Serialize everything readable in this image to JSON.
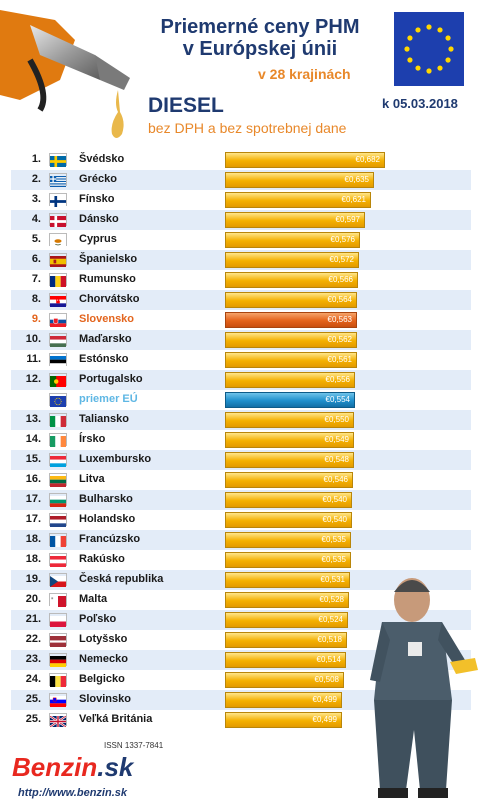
{
  "header": {
    "title_line1": "Priemerné ceny PHM",
    "title_line2": "v Európskej únii",
    "subtitle": "v 28 krajinách",
    "date": "k 05.03.2018",
    "fuel": "DIESEL",
    "note": "bez DPH a bez spotrebnej dane"
  },
  "footer": {
    "issn": "ISSN 1337-7841",
    "logo_main": "Benzin",
    "logo_tld": ".sk",
    "url": "http://www.benzin.sk"
  },
  "colors": {
    "bar": "#f4b000",
    "highlight_slovakia": "#e4621a",
    "highlight_eu": "#1f8fcc"
  },
  "chart_data": {
    "type": "bar",
    "title": "Priemerné ceny PHM v Európskej únii",
    "subtitle": "v 28 krajinách",
    "unit": "€",
    "orientation": "horizontal",
    "rows": [
      {
        "rank": "1.",
        "country": "Švédsko",
        "value": 0.682,
        "label": "€0,682",
        "flag": "se"
      },
      {
        "rank": "2.",
        "country": "Grécko",
        "value": 0.635,
        "label": "€0,635",
        "flag": "gr"
      },
      {
        "rank": "3.",
        "country": "Fínsko",
        "value": 0.621,
        "label": "€0,621",
        "flag": "fi"
      },
      {
        "rank": "4.",
        "country": "Dánsko",
        "value": 0.597,
        "label": "€0,597",
        "flag": "dk"
      },
      {
        "rank": "5.",
        "country": "Cyprus",
        "value": 0.576,
        "label": "€0,576",
        "flag": "cy"
      },
      {
        "rank": "6.",
        "country": "Španielsko",
        "value": 0.572,
        "label": "€0,572",
        "flag": "es"
      },
      {
        "rank": "7.",
        "country": "Rumunsko",
        "value": 0.566,
        "label": "€0,566",
        "flag": "ro"
      },
      {
        "rank": "8.",
        "country": "Chorvátsko",
        "value": 0.564,
        "label": "€0,564",
        "flag": "hr"
      },
      {
        "rank": "9.",
        "country": "Slovensko",
        "value": 0.563,
        "label": "€0,563",
        "flag": "sk",
        "highlight": "sk"
      },
      {
        "rank": "10.",
        "country": "Maďarsko",
        "value": 0.562,
        "label": "€0,562",
        "flag": "hu"
      },
      {
        "rank": "11.",
        "country": "Estónsko",
        "value": 0.561,
        "label": "€0,561",
        "flag": "ee"
      },
      {
        "rank": "12.",
        "country": "Portugalsko",
        "value": 0.556,
        "label": "€0,556",
        "flag": "pt"
      },
      {
        "rank": "",
        "country": "priemer EÚ",
        "value": 0.554,
        "label": "€0,554",
        "flag": "eu",
        "highlight": "eu"
      },
      {
        "rank": "13.",
        "country": "Taliansko",
        "value": 0.55,
        "label": "€0,550",
        "flag": "it"
      },
      {
        "rank": "14.",
        "country": "Írsko",
        "value": 0.549,
        "label": "€0,549",
        "flag": "ie"
      },
      {
        "rank": "15.",
        "country": "Luxembursko",
        "value": 0.548,
        "label": "€0,548",
        "flag": "lu"
      },
      {
        "rank": "16.",
        "country": "Litva",
        "value": 0.546,
        "label": "€0,546",
        "flag": "lt"
      },
      {
        "rank": "17.",
        "country": "Bulharsko",
        "value": 0.54,
        "label": "€0,540",
        "flag": "bg"
      },
      {
        "rank": "17.",
        "country": "Holandsko",
        "value": 0.54,
        "label": "€0,540",
        "flag": "nl"
      },
      {
        "rank": "18.",
        "country": "Francúzsko",
        "value": 0.535,
        "label": "€0,535",
        "flag": "fr"
      },
      {
        "rank": "18.",
        "country": "Rakúsko",
        "value": 0.535,
        "label": "€0,535",
        "flag": "at"
      },
      {
        "rank": "19.",
        "country": "Česká republika",
        "value": 0.531,
        "label": "€0,531",
        "flag": "cz"
      },
      {
        "rank": "20.",
        "country": "Malta",
        "value": 0.528,
        "label": "€0,528",
        "flag": "mt"
      },
      {
        "rank": "21.",
        "country": "Poľsko",
        "value": 0.524,
        "label": "€0,524",
        "flag": "pl"
      },
      {
        "rank": "22.",
        "country": "Lotyšsko",
        "value": 0.518,
        "label": "€0,518",
        "flag": "lv"
      },
      {
        "rank": "23.",
        "country": "Nemecko",
        "value": 0.514,
        "label": "€0,514",
        "flag": "de"
      },
      {
        "rank": "24.",
        "country": "Belgicko",
        "value": 0.508,
        "label": "€0,508",
        "flag": "be"
      },
      {
        "rank": "25.",
        "country": "Slovinsko",
        "value": 0.499,
        "label": "€0,499",
        "flag": "si"
      },
      {
        "rank": "25.",
        "country": "Veľká Británia",
        "value": 0.499,
        "label": "€0,499",
        "flag": "gb"
      }
    ]
  }
}
